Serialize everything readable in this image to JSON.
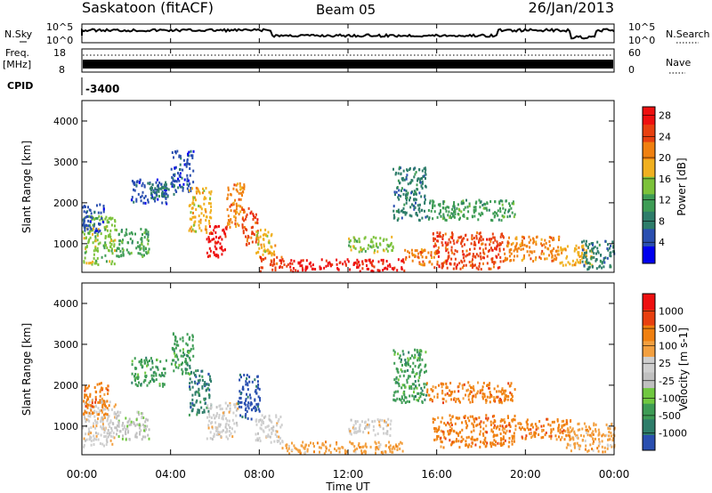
{
  "header": {
    "station": "Saskatoon (fitACF)",
    "beam": "Beam 05",
    "date": "26/Jan/2013"
  },
  "noise_panel": {
    "left_label": "N.Sky",
    "right_label": "N.Search",
    "left_ticks": [
      "10^5",
      "10^0"
    ],
    "right_ticks": [
      "10^5",
      "10^0"
    ]
  },
  "freq_panel": {
    "left_label": "Freq.",
    "left_unit": "[MHz]",
    "right_label": "Nave",
    "left_ticks": [
      "18",
      "8"
    ],
    "right_ticks": [
      "60",
      "0"
    ]
  },
  "cpid_panel": {
    "label": "CPID",
    "value": "-3400"
  },
  "x_axis": {
    "label": "Time UT",
    "ticks": [
      "00:00",
      "04:00",
      "08:00",
      "12:00",
      "16:00",
      "20:00",
      "00:00"
    ]
  },
  "colors": {
    "power_scale": [
      "#0000ee",
      "#2a4fb0",
      "#2e7d6a",
      "#3e9c55",
      "#7cc23a",
      "#f0b020",
      "#f08010",
      "#e84010",
      "#ee1010"
    ],
    "velocity_scale": [
      "#ee1010",
      "#e84010",
      "#f08010",
      "#f3a040",
      "#cfcfcf",
      "#c0c0c0",
      "#70c840",
      "#3e9c55",
      "#2e7d6a",
      "#2a4fb0"
    ]
  },
  "chart_data": [
    {
      "type": "heatmap",
      "name": "power",
      "ylabel": "Slant Range [km]",
      "yticks": [
        "1000",
        "2000",
        "3000",
        "4000"
      ],
      "ylim": [
        300,
        4500
      ],
      "xlim": [
        0,
        24
      ],
      "colorbar": {
        "label": "Power [dB]",
        "ticks": [
          "4",
          "8",
          "12",
          "16",
          "20",
          "24",
          "28"
        ]
      },
      "regions": [
        {
          "t0": 0.0,
          "t1": 1.5,
          "r0": 500,
          "r1": 1700,
          "c": 4
        },
        {
          "t0": 0.0,
          "t1": 1.0,
          "r0": 1300,
          "r1": 2000,
          "c": 1
        },
        {
          "t0": 1.5,
          "t1": 3.0,
          "r0": 700,
          "r1": 1400,
          "c": 3
        },
        {
          "t0": 2.2,
          "t1": 3.8,
          "r0": 2000,
          "r1": 2600,
          "c": 1
        },
        {
          "t0": 3.0,
          "t1": 4.3,
          "r0": 2100,
          "r1": 2500,
          "c": 2
        },
        {
          "t0": 4.0,
          "t1": 5.0,
          "r0": 2300,
          "r1": 3300,
          "c": 1
        },
        {
          "t0": 4.8,
          "t1": 5.8,
          "r0": 1300,
          "r1": 2400,
          "c": 5
        },
        {
          "t0": 5.6,
          "t1": 6.5,
          "r0": 700,
          "r1": 1500,
          "c": 8
        },
        {
          "t0": 6.5,
          "t1": 7.3,
          "r0": 1400,
          "r1": 2500,
          "c": 6
        },
        {
          "t0": 7.2,
          "t1": 7.9,
          "r0": 1000,
          "r1": 1900,
          "c": 7
        },
        {
          "t0": 7.8,
          "t1": 8.7,
          "r0": 700,
          "r1": 1400,
          "c": 5
        },
        {
          "t0": 8.0,
          "t1": 9.3,
          "r0": 350,
          "r1": 700,
          "c": 7
        },
        {
          "t0": 9.3,
          "t1": 14.5,
          "r0": 350,
          "r1": 650,
          "c": 8
        },
        {
          "t0": 12.0,
          "t1": 14.0,
          "r0": 800,
          "r1": 1200,
          "c": 4
        },
        {
          "t0": 14.0,
          "t1": 15.5,
          "r0": 1600,
          "r1": 2900,
          "c": 2
        },
        {
          "t0": 14.5,
          "t1": 16.0,
          "r0": 500,
          "r1": 900,
          "c": 6
        },
        {
          "t0": 15.5,
          "t1": 19.5,
          "r0": 1600,
          "r1": 2100,
          "c": 3
        },
        {
          "t0": 15.8,
          "t1": 19.0,
          "r0": 400,
          "r1": 1300,
          "c": 7
        },
        {
          "t0": 19.0,
          "t1": 21.5,
          "r0": 600,
          "r1": 1200,
          "c": 6
        },
        {
          "t0": 21.5,
          "t1": 23.0,
          "r0": 500,
          "r1": 1000,
          "c": 5
        },
        {
          "t0": 22.5,
          "t1": 24.0,
          "r0": 400,
          "r1": 1100,
          "c": 2
        }
      ]
    },
    {
      "type": "heatmap",
      "name": "velocity",
      "ylabel": "Slant Range [km]",
      "yticks": [
        "1000",
        "2000",
        "3000",
        "4000"
      ],
      "ylim": [
        300,
        4500
      ],
      "xlim": [
        0,
        24
      ],
      "colorbar": {
        "label": "Velocity [m s-1]",
        "ticks": [
          "1000",
          "500",
          "100",
          "25",
          "-25",
          "-100",
          "-500",
          "-1000"
        ]
      },
      "regions": [
        {
          "t0": 0.0,
          "t1": 1.5,
          "r0": 500,
          "r1": 1700,
          "c": 4
        },
        {
          "t0": 0.0,
          "t1": 1.2,
          "r0": 1300,
          "r1": 2100,
          "c": 2
        },
        {
          "t0": 1.5,
          "t1": 3.0,
          "r0": 700,
          "r1": 1400,
          "c": 5
        },
        {
          "t0": 2.2,
          "t1": 3.8,
          "r0": 2000,
          "r1": 2700,
          "c": 7
        },
        {
          "t0": 4.0,
          "t1": 5.0,
          "r0": 2300,
          "r1": 3300,
          "c": 7
        },
        {
          "t0": 4.8,
          "t1": 5.8,
          "r0": 1300,
          "r1": 2400,
          "c": 8
        },
        {
          "t0": 5.6,
          "t1": 7.0,
          "r0": 700,
          "r1": 1600,
          "c": 4
        },
        {
          "t0": 7.0,
          "t1": 8.0,
          "r0": 1200,
          "r1": 2300,
          "c": 9
        },
        {
          "t0": 7.8,
          "t1": 9.0,
          "r0": 600,
          "r1": 1300,
          "c": 4
        },
        {
          "t0": 9.0,
          "t1": 14.5,
          "r0": 350,
          "r1": 650,
          "c": 3
        },
        {
          "t0": 12.0,
          "t1": 14.0,
          "r0": 800,
          "r1": 1200,
          "c": 4
        },
        {
          "t0": 14.0,
          "t1": 15.5,
          "r0": 1600,
          "r1": 2900,
          "c": 7
        },
        {
          "t0": 15.5,
          "t1": 19.5,
          "r0": 1600,
          "r1": 2100,
          "c": 2
        },
        {
          "t0": 15.8,
          "t1": 19.5,
          "r0": 500,
          "r1": 1300,
          "c": 2
        },
        {
          "t0": 19.5,
          "t1": 22.0,
          "r0": 700,
          "r1": 1200,
          "c": 2
        },
        {
          "t0": 21.8,
          "t1": 24.0,
          "r0": 400,
          "r1": 1100,
          "c": 3
        }
      ]
    }
  ]
}
